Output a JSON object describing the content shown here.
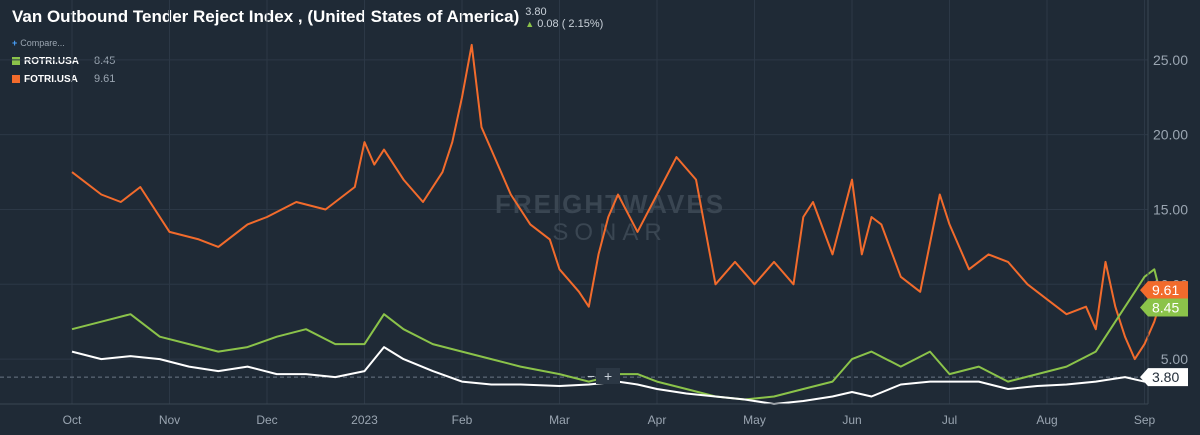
{
  "header": {
    "title": "Van Outbound Tender Reject Index , (United States of America)",
    "last_value": "3.80",
    "change": "0.08 ( 2.15%)",
    "change_direction_icon": "up-triangle-icon"
  },
  "legend": {
    "compare_label": "Compare...",
    "compare_icon": "plus-icon",
    "items": [
      {
        "name": "ROTRI.USA",
        "value": "8.45",
        "color": "#8bc34a"
      },
      {
        "name": "FOTRI.USA",
        "value": "9.61",
        "color": "#f26b2c"
      }
    ]
  },
  "watermark": {
    "line1": "FREIGHTWAVES",
    "line2": "SONAR"
  },
  "zoom": {
    "minus": "−",
    "plus": "+"
  },
  "chart_data": {
    "type": "line",
    "x_tick_labels": [
      "Oct",
      "Nov",
      "Dec",
      "2023",
      "Feb",
      "Mar",
      "Apr",
      "May",
      "Jun",
      "Jul",
      "Aug",
      "Sep"
    ],
    "y_tick_labels": [
      "5.00",
      "10.00",
      "15.00",
      "20.00",
      "25.00"
    ],
    "ylim": [
      2,
      29
    ],
    "grid": true,
    "series": [
      {
        "name": "FOTRI.USA",
        "color": "#f26b2c",
        "last_label": "9.61",
        "x": [
          0.0,
          0.3,
          0.5,
          0.7,
          1.0,
          1.3,
          1.5,
          1.8,
          2.0,
          2.3,
          2.6,
          2.9,
          3.0,
          3.1,
          3.2,
          3.4,
          3.6,
          3.8,
          3.9,
          4.0,
          4.1,
          4.2,
          4.3,
          4.5,
          4.7,
          4.9,
          5.0,
          5.2,
          5.3,
          5.4,
          5.5,
          5.6,
          5.8,
          6.0,
          6.2,
          6.4,
          6.6,
          6.8,
          7.0,
          7.2,
          7.4,
          7.5,
          7.6,
          7.8,
          8.0,
          8.1,
          8.2,
          8.3,
          8.5,
          8.7,
          8.9,
          9.0,
          9.2,
          9.4,
          9.6,
          9.8,
          10.0,
          10.2,
          10.4,
          10.5,
          10.6,
          10.7,
          10.8,
          10.9,
          11.0,
          11.1,
          11.2
        ],
        "y": [
          17.5,
          16.0,
          15.5,
          16.5,
          13.5,
          13.0,
          12.5,
          14.0,
          14.5,
          15.5,
          15.0,
          16.5,
          19.5,
          18.0,
          19.0,
          17.0,
          15.5,
          17.5,
          19.5,
          22.5,
          26.0,
          20.5,
          19.0,
          16.0,
          14.0,
          13.0,
          11.0,
          9.5,
          8.5,
          12.0,
          14.5,
          16.0,
          13.5,
          16.0,
          18.5,
          17.0,
          10.0,
          11.5,
          10.0,
          11.5,
          10.0,
          14.5,
          15.5,
          12.0,
          17.0,
          12.0,
          14.5,
          14.0,
          10.5,
          9.5,
          16.0,
          14.0,
          11.0,
          12.0,
          11.5,
          10.0,
          9.0,
          8.0,
          8.5,
          7.0,
          11.5,
          8.5,
          6.5,
          5.0,
          6.0,
          7.5,
          9.61
        ]
      },
      {
        "name": "ROTRI.USA",
        "color": "#8bc34a",
        "last_label": "8.45",
        "x": [
          0.0,
          0.3,
          0.6,
          0.9,
          1.2,
          1.5,
          1.8,
          2.1,
          2.4,
          2.7,
          3.0,
          3.2,
          3.4,
          3.7,
          4.0,
          4.3,
          4.6,
          5.0,
          5.3,
          5.6,
          5.8,
          6.0,
          6.3,
          6.6,
          6.9,
          7.2,
          7.5,
          7.8,
          8.0,
          8.2,
          8.5,
          8.8,
          9.0,
          9.3,
          9.6,
          9.9,
          10.2,
          10.5,
          10.7,
          10.9,
          11.0,
          11.1,
          11.2
        ],
        "y": [
          7.0,
          7.5,
          8.0,
          6.5,
          6.0,
          5.5,
          5.8,
          6.5,
          7.0,
          6.0,
          6.0,
          8.0,
          7.0,
          6.0,
          5.5,
          5.0,
          4.5,
          4.0,
          3.5,
          4.0,
          4.0,
          3.5,
          3.0,
          2.5,
          2.3,
          2.5,
          3.0,
          3.5,
          5.0,
          5.5,
          4.5,
          5.5,
          4.0,
          4.5,
          3.5,
          4.0,
          4.5,
          5.5,
          7.5,
          9.5,
          10.5,
          11.0,
          8.45
        ]
      },
      {
        "name": "Van Outbound Tender Reject Index",
        "color": "#ffffff",
        "last_label": "3.80",
        "x": [
          0.0,
          0.3,
          0.6,
          0.9,
          1.2,
          1.5,
          1.8,
          2.1,
          2.4,
          2.7,
          3.0,
          3.2,
          3.4,
          3.7,
          4.0,
          4.3,
          4.6,
          5.0,
          5.3,
          5.6,
          5.8,
          6.0,
          6.3,
          6.6,
          6.9,
          7.2,
          7.5,
          7.8,
          8.0,
          8.2,
          8.5,
          8.8,
          9.0,
          9.3,
          9.6,
          9.9,
          10.2,
          10.5,
          10.8,
          11.0,
          11.2
        ],
        "y": [
          5.5,
          5.0,
          5.2,
          5.0,
          4.5,
          4.2,
          4.5,
          4.0,
          4.0,
          3.8,
          4.2,
          5.8,
          5.0,
          4.2,
          3.5,
          3.3,
          3.3,
          3.2,
          3.3,
          3.5,
          3.3,
          3.0,
          2.7,
          2.5,
          2.3,
          2.0,
          2.2,
          2.5,
          2.8,
          2.5,
          3.3,
          3.5,
          3.5,
          3.5,
          3.0,
          3.2,
          3.3,
          3.5,
          3.8,
          3.5,
          3.8
        ]
      }
    ]
  }
}
